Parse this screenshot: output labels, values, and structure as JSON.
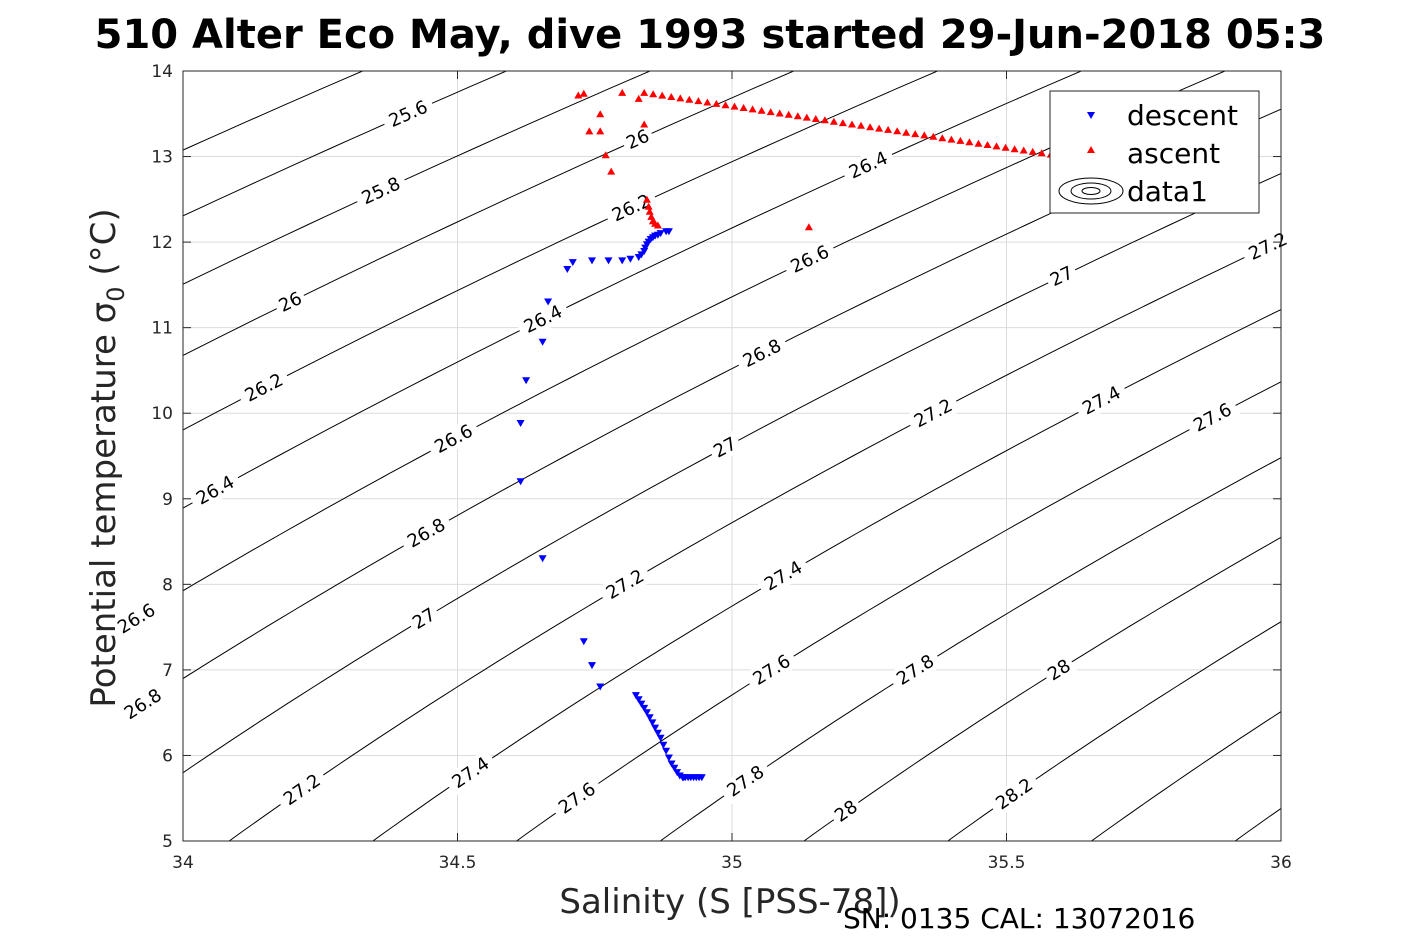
{
  "chart_data": {
    "type": "scatter",
    "title": "510 Alter Eco May, dive 1993 started 29-Jun-2018 05:3",
    "xlabel": "Salinity (S [PSS-78])",
    "ylabel": "Potential temperature σ",
    "ylabel_sub": "0",
    "ylabel_unit": " (°C)",
    "xlim": [
      34,
      36
    ],
    "ylim": [
      5,
      14
    ],
    "x_ticks": [
      "34",
      "34.5",
      "35",
      "35.5",
      "36"
    ],
    "y_ticks": [
      "5",
      "6",
      "7",
      "8",
      "9",
      "10",
      "11",
      "12",
      "13",
      "14"
    ],
    "grid": true,
    "legend_position": "top-right",
    "legend": [
      "descent",
      "ascent",
      "data1"
    ],
    "footer": "SN: 0135  CAL: 13072016",
    "colors": {
      "descent": "#0000ff",
      "ascent": "#ff0000",
      "contour": "#000000",
      "grid": "#dcdcdc"
    },
    "contour_levels": [
      25.4,
      25.6,
      25.8,
      26.0,
      26.2,
      26.4,
      26.6,
      26.8,
      27.0,
      27.2,
      27.4,
      27.6,
      27.8,
      28.0,
      28.2,
      28.4,
      28.6
    ],
    "contour_label_text": {
      "25.6": "25.6",
      "25.8": "25.8",
      "26.0": "26",
      "26.2": "26.2",
      "26.4": "26.4",
      "26.6": "26.6",
      "26.8": "26.8",
      "27.0": "27",
      "27.2": "27.2",
      "27.4": "27.4",
      "27.6": "27.6",
      "27.8": "27.8",
      "28.0": "28",
      "28.2": "28.2"
    },
    "contour_labels": [
      {
        "level": "25.6",
        "x": 34.09,
        "y": 13.5
      },
      {
        "level": "25.8",
        "x": 34.17,
        "y": 12.6
      },
      {
        "level": "26.0",
        "x": 34.08,
        "y": 11.3
      },
      {
        "level": "26.2",
        "x": 34.15,
        "y": 10.3
      },
      {
        "level": "26.4",
        "x": 34.11,
        "y": 9.1
      },
      {
        "level": "26.6",
        "x": 34.07,
        "y": 7.6
      },
      {
        "level": "26.8",
        "x": 34.1,
        "y": 6.6
      },
      {
        "level": "26.0",
        "x": 34.54,
        "y": 13.2
      },
      {
        "level": "26.2",
        "x": 34.6,
        "y": 12.4
      },
      {
        "level": "26.4",
        "x": 34.55,
        "y": 11.1
      },
      {
        "level": "26.6",
        "x": 34.5,
        "y": 9.7
      },
      {
        "level": "26.8",
        "x": 34.52,
        "y": 8.6
      },
      {
        "level": "27.0",
        "x": 34.57,
        "y": 7.6
      },
      {
        "level": "27.2",
        "x": 34.48,
        "y": 5.6
      },
      {
        "level": "26.4",
        "x": 35.0,
        "y": 12.9
      },
      {
        "level": "26.6",
        "x": 34.94,
        "y": 11.8
      },
      {
        "level": "26.8",
        "x": 34.97,
        "y": 10.7
      },
      {
        "level": "27.0",
        "x": 35.01,
        "y": 9.6
      },
      {
        "level": "27.2",
        "x": 34.87,
        "y": 8.0
      },
      {
        "level": "27.4",
        "x": 34.72,
        "y": 5.8
      },
      {
        "level": "27.6",
        "x": 34.97,
        "y": 5.5
      },
      {
        "level": "26.6",
        "x": 35.42,
        "y": 13.55
      },
      {
        "level": "26.8",
        "x": 35.42,
        "y": 12.6
      },
      {
        "level": "27.0",
        "x": 35.46,
        "y": 11.6
      },
      {
        "level": "27.2",
        "x": 35.33,
        "y": 10.0
      },
      {
        "level": "27.4",
        "x": 35.17,
        "y": 8.1
      },
      {
        "level": "27.6",
        "x": 35.39,
        "y": 7.0
      },
      {
        "level": "27.8",
        "x": 35.27,
        "y": 5.7
      },
      {
        "level": "28.0",
        "x": 35.46,
        "y": 5.35
      },
      {
        "level": "27.2",
        "x": 35.9,
        "y": 11.95
      },
      {
        "level": "27.4",
        "x": 35.62,
        "y": 10.15
      },
      {
        "level": "27.6",
        "x": 35.84,
        "y": 9.95
      },
      {
        "level": "27.8",
        "x": 35.65,
        "y": 7.0
      },
      {
        "level": "28.0",
        "x": 35.85,
        "y": 7.0
      },
      {
        "level": "28.2",
        "x": 35.71,
        "y": 5.55
      }
    ],
    "series": [
      {
        "name": "descent",
        "marker": "triangle-down",
        "x": [
          34.945,
          34.94,
          34.935,
          34.93,
          34.925,
          34.92,
          34.915,
          34.912,
          34.91,
          34.905,
          34.9,
          34.895,
          34.89,
          34.885,
          34.88,
          34.875,
          34.87,
          34.865,
          34.86,
          34.855,
          34.85,
          34.845,
          34.84,
          34.835,
          34.83,
          34.825,
          34.76,
          34.745,
          34.73,
          34.655,
          34.615,
          34.615,
          34.625,
          34.655,
          34.665,
          34.7,
          34.71,
          34.745,
          34.775,
          34.8,
          34.815,
          34.83,
          34.835,
          34.84,
          34.842,
          34.845,
          34.848,
          34.852,
          34.856,
          34.86,
          34.865,
          34.87,
          34.88,
          34.885
        ],
        "y": [
          5.74,
          5.74,
          5.74,
          5.74,
          5.74,
          5.74,
          5.74,
          5.74,
          5.74,
          5.76,
          5.8,
          5.85,
          5.9,
          5.97,
          6.05,
          6.12,
          6.2,
          6.26,
          6.32,
          6.38,
          6.44,
          6.5,
          6.55,
          6.6,
          6.65,
          6.7,
          6.8,
          7.05,
          7.33,
          8.3,
          9.2,
          9.88,
          10.38,
          10.83,
          11.3,
          11.68,
          11.76,
          11.78,
          11.78,
          11.78,
          11.8,
          11.82,
          11.85,
          11.89,
          11.93,
          11.97,
          12.0,
          12.03,
          12.05,
          12.07,
          12.08,
          12.1,
          12.12,
          12.12
        ]
      },
      {
        "name": "ascent",
        "marker": "triangle-up",
        "x": [
          34.72,
          34.73,
          34.76,
          34.74,
          34.76,
          34.77,
          34.78,
          34.8,
          34.83,
          34.84,
          34.845,
          34.848,
          34.85,
          34.853,
          34.856,
          34.86,
          34.865,
          35.14
        ],
        "y": [
          13.72,
          13.74,
          13.5,
          13.3,
          13.3,
          13.02,
          12.83,
          13.75,
          13.68,
          13.38,
          12.5,
          12.42,
          12.36,
          12.3,
          12.25,
          12.22,
          12.2,
          12.18
        ]
      }
    ]
  }
}
